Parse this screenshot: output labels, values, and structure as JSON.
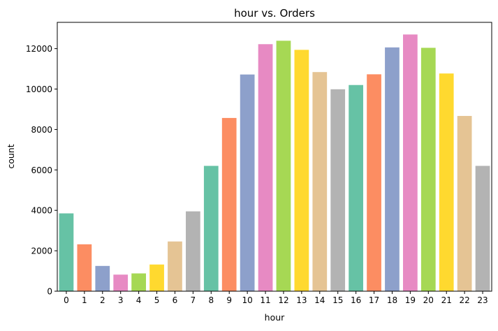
{
  "chart_data": {
    "type": "bar",
    "title": "hour vs. Orders",
    "xlabel": "hour",
    "ylabel": "count",
    "categories": [
      "0",
      "1",
      "2",
      "3",
      "4",
      "5",
      "6",
      "7",
      "8",
      "9",
      "10",
      "11",
      "12",
      "13",
      "14",
      "15",
      "16",
      "17",
      "18",
      "19",
      "20",
      "21",
      "22",
      "23"
    ],
    "values": [
      3850,
      2320,
      1250,
      820,
      880,
      1320,
      2460,
      3950,
      6200,
      8570,
      10720,
      12220,
      12390,
      11940,
      10840,
      9990,
      10200,
      10730,
      12060,
      12700,
      12040,
      10770,
      8670,
      6200
    ],
    "ylim": [
      0,
      13300
    ],
    "yticks": [
      0,
      2000,
      4000,
      6000,
      8000,
      10000,
      12000
    ],
    "grid": false,
    "palette": [
      "#66c2a5",
      "#fc8d62",
      "#8da0cb",
      "#e78ac3",
      "#a6d854",
      "#ffd92f",
      "#e5c494",
      "#b3b3b3"
    ]
  }
}
